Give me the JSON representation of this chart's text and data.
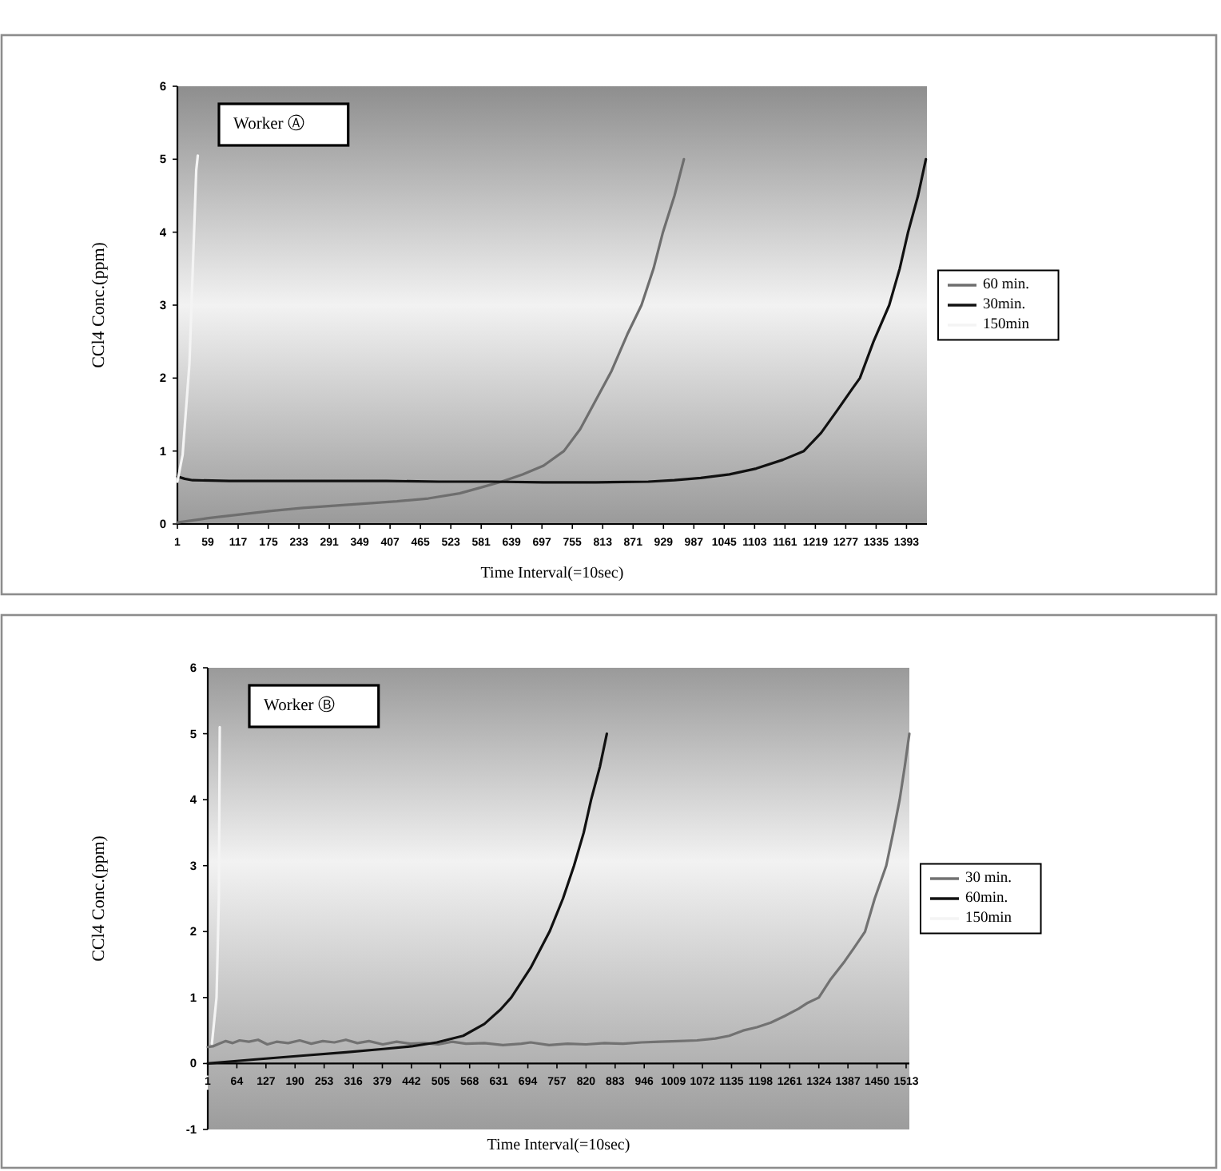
{
  "chart_data": [
    {
      "type": "line",
      "xlabel": "Time Interval(=10sec)",
      "ylabel": "CCl4 Conc.(ppm)",
      "annotations": [
        "Worker Ⓐ"
      ],
      "xlim": [
        1,
        1432
      ],
      "xticks": [
        1,
        59,
        117,
        175,
        233,
        291,
        349,
        407,
        465,
        523,
        581,
        639,
        697,
        755,
        813,
        871,
        929,
        987,
        1045,
        1103,
        1161,
        1219,
        1277,
        1335,
        1393
      ],
      "ylim": [
        0,
        6
      ],
      "yticks": [
        0,
        1,
        2,
        3,
        4,
        5,
        6
      ],
      "legend": "right",
      "series": [
        {
          "name": "60 min.",
          "color": "#6e6e6e",
          "x": [
            1,
            60,
            120,
            180,
            240,
            300,
            360,
            420,
            480,
            540,
            580,
            620,
            660,
            700,
            739,
            770,
            800,
            830,
            860,
            887,
            910,
            928,
            950,
            968
          ],
          "values": [
            0.02,
            0.08,
            0.13,
            0.18,
            0.22,
            0.25,
            0.28,
            0.31,
            0.35,
            0.42,
            0.5,
            0.58,
            0.68,
            0.8,
            1.0,
            1.3,
            1.7,
            2.1,
            2.6,
            3.0,
            3.5,
            4.0,
            4.5,
            5.0
          ]
        },
        {
          "name": "30min.",
          "color": "#111111",
          "x": [
            1,
            15,
            30,
            100,
            200,
            300,
            400,
            500,
            600,
            700,
            800,
            900,
            950,
            1000,
            1055,
            1106,
            1157,
            1197,
            1230,
            1260,
            1289,
            1304,
            1330,
            1360,
            1380,
            1396,
            1415,
            1430
          ],
          "values": [
            0.65,
            0.62,
            0.6,
            0.59,
            0.59,
            0.59,
            0.59,
            0.58,
            0.58,
            0.57,
            0.57,
            0.58,
            0.6,
            0.63,
            0.68,
            0.76,
            0.88,
            1.0,
            1.25,
            1.55,
            1.85,
            2.0,
            2.5,
            3.0,
            3.5,
            4.0,
            4.5,
            5.0
          ]
        },
        {
          "name": "150min",
          "color": "#f4f4f4",
          "x": [
            1,
            11,
            24,
            37,
            40
          ],
          "values": [
            0.58,
            0.95,
            2.2,
            4.85,
            5.05
          ]
        }
      ]
    },
    {
      "type": "line",
      "xlabel": "Time Interval(=10sec)",
      "ylabel": "CCl4 Conc.(ppm)",
      "annotations": [
        "Worker Ⓑ"
      ],
      "xlim": [
        1,
        1520
      ],
      "xticks": [
        1,
        64,
        127,
        190,
        253,
        316,
        379,
        442,
        505,
        568,
        631,
        694,
        757,
        820,
        883,
        946,
        1009,
        1072,
        1135,
        1198,
        1261,
        1324,
        1387,
        1450,
        1513
      ],
      "ylim": [
        -1,
        6
      ],
      "yticks": [
        -1,
        0,
        1,
        2,
        3,
        4,
        5,
        6
      ],
      "legend": "right",
      "series": [
        {
          "name": "30 min.",
          "color": "#727272",
          "x": [
            1,
            12,
            25,
            40,
            55,
            70,
            90,
            110,
            130,
            150,
            175,
            200,
            225,
            250,
            275,
            300,
            325,
            350,
            380,
            410,
            440,
            470,
            500,
            530,
            560,
            600,
            640,
            680,
            700,
            740,
            780,
            820,
            860,
            900,
            940,
            980,
            1020,
            1060,
            1100,
            1130,
            1160,
            1190,
            1220,
            1250,
            1280,
            1300,
            1324,
            1350,
            1380,
            1400,
            1424,
            1445,
            1470,
            1485,
            1499,
            1510,
            1520
          ],
          "values": [
            0.25,
            0.26,
            0.3,
            0.34,
            0.31,
            0.35,
            0.33,
            0.36,
            0.29,
            0.33,
            0.31,
            0.35,
            0.3,
            0.34,
            0.32,
            0.36,
            0.31,
            0.34,
            0.29,
            0.33,
            0.3,
            0.31,
            0.29,
            0.33,
            0.3,
            0.31,
            0.28,
            0.3,
            0.32,
            0.28,
            0.3,
            0.29,
            0.31,
            0.3,
            0.32,
            0.33,
            0.34,
            0.35,
            0.38,
            0.42,
            0.5,
            0.55,
            0.62,
            0.72,
            0.83,
            0.92,
            1.0,
            1.28,
            1.55,
            1.75,
            2.0,
            2.5,
            3.0,
            3.5,
            4.0,
            4.5,
            5.0
          ]
        },
        {
          "name": "60min.",
          "color": "#111111",
          "x": [
            1,
            100,
            208,
            300,
            381,
            442,
            497,
            554,
            600,
            635,
            658,
            700,
            741,
            770,
            794,
            815,
            831,
            850,
            865
          ],
          "values": [
            0.0,
            0.06,
            0.12,
            0.17,
            0.22,
            0.26,
            0.32,
            0.42,
            0.6,
            0.82,
            1.0,
            1.45,
            2.0,
            2.5,
            3.0,
            3.5,
            4.0,
            4.5,
            5.0
          ]
        },
        {
          "name": "150min",
          "color": "#f4f4f4",
          "x": [
            10,
            20,
            25,
            27
          ],
          "values": [
            0.3,
            1.0,
            2.5,
            5.1
          ]
        }
      ]
    }
  ]
}
